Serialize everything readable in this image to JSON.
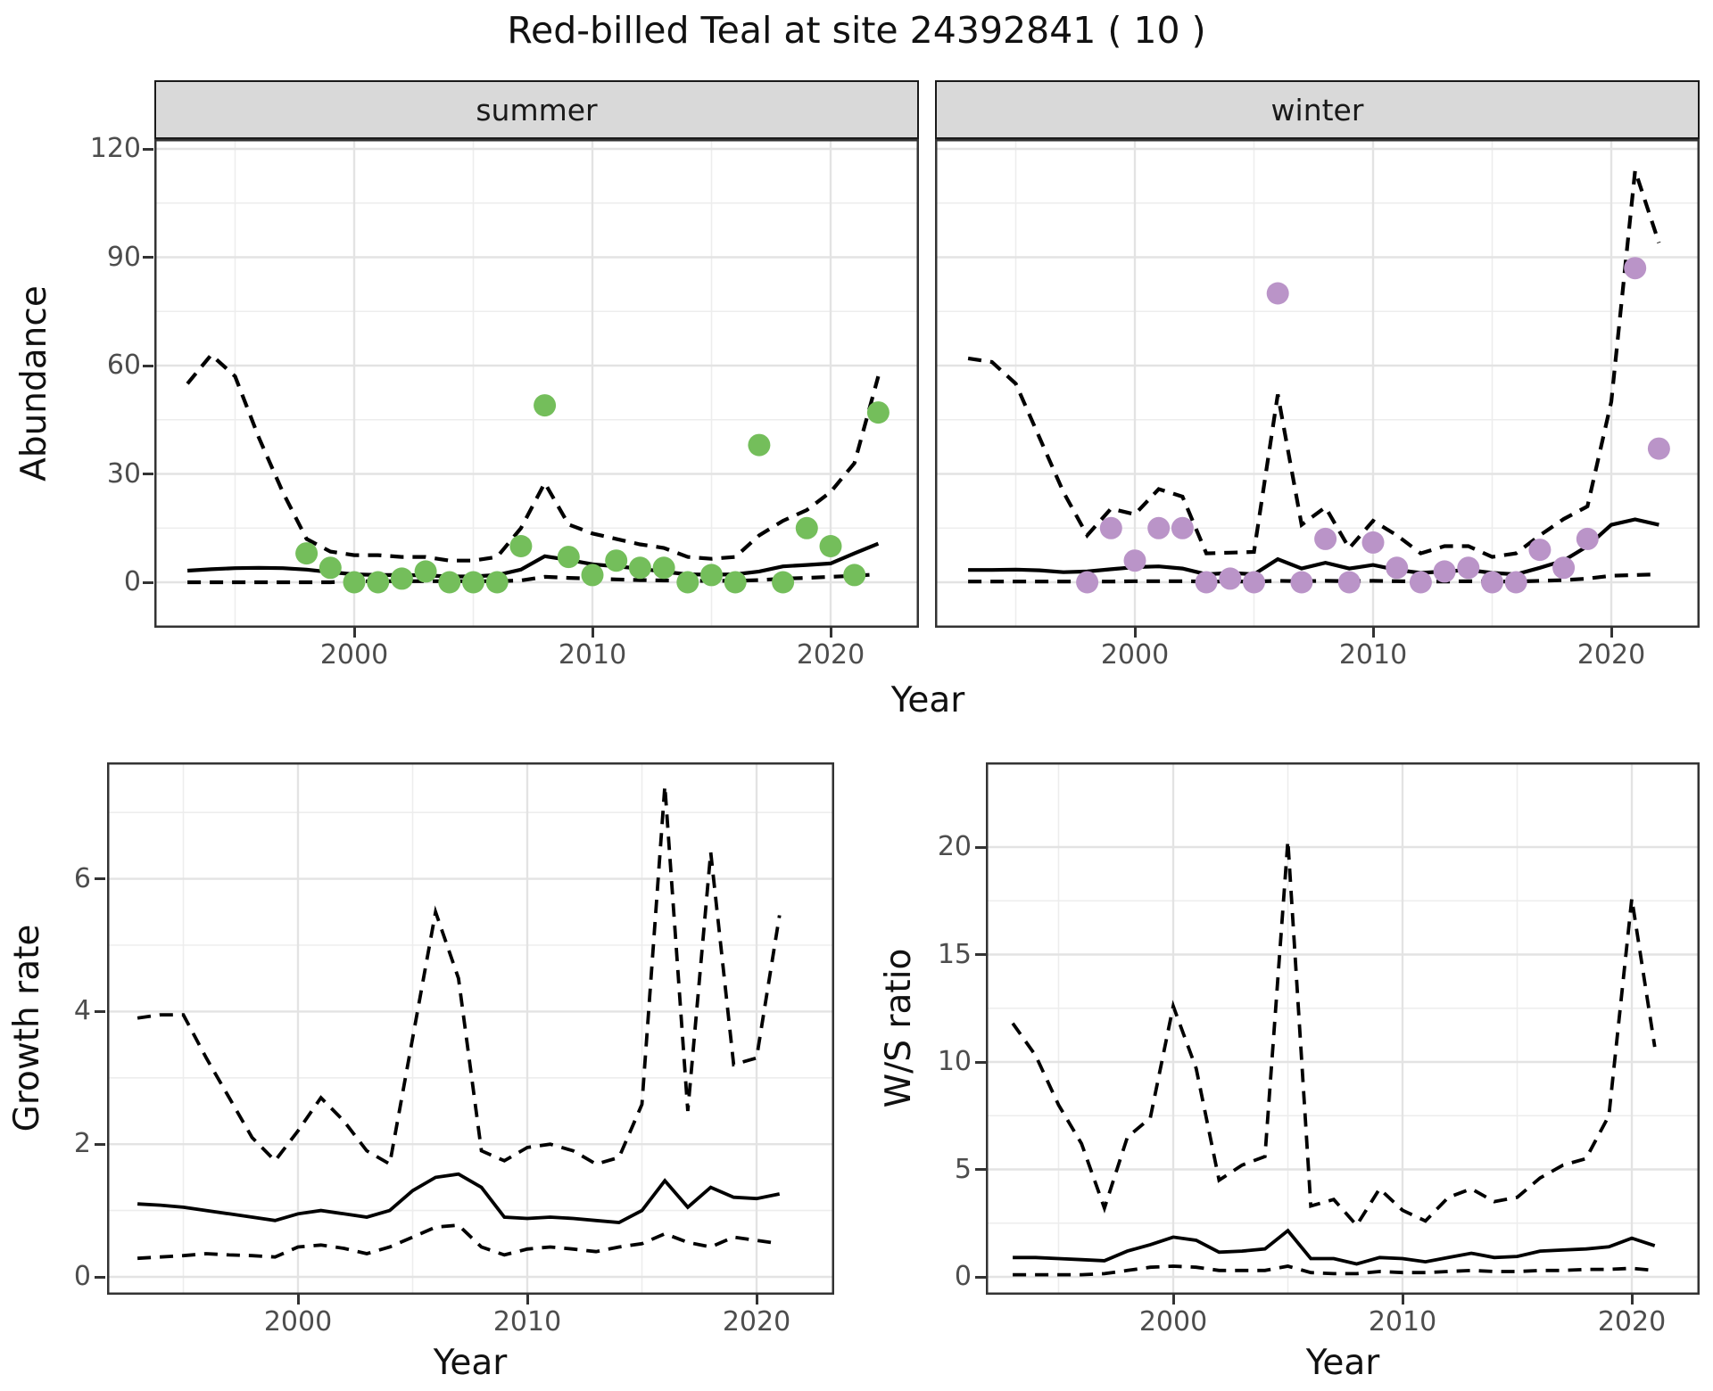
{
  "page_title": "Red-billed Teal at site 24392841 ( 10 )",
  "labels": {
    "abundance_ylabel": "Abundance",
    "year_xlabel": "Year",
    "growth_ylabel": "Growth rate",
    "ws_ylabel": "W/S ratio",
    "facet_summer": "summer",
    "facet_winter": "winter"
  },
  "colors": {
    "summer_point": "#74BE5B",
    "winter_point": "#BA94C8",
    "line": "#000000",
    "strip_bg": "#D9D9D9",
    "panel_border": "#333333",
    "grid_major": "#E3E3E3",
    "grid_minor": "#EDEDED",
    "tick_text": "#4D4D4D"
  },
  "chart_data": [
    {
      "id": "abundance-summer",
      "type": "scatter",
      "facet": "summer",
      "ylabel": "Abundance",
      "xlabel": "Year",
      "ylim": [
        0,
        120
      ],
      "yticks": [
        0,
        30,
        60,
        90,
        120
      ],
      "yticks_minor": [
        15,
        45,
        75,
        105
      ],
      "xticks": [
        2000,
        2010,
        2020
      ],
      "xticks_minor": [
        1995,
        2005,
        2015
      ],
      "point_color": "#74BE5B",
      "years": [
        1993,
        1994,
        1995,
        1996,
        1997,
        1998,
        1999,
        2000,
        2001,
        2002,
        2003,
        2004,
        2005,
        2006,
        2007,
        2008,
        2009,
        2010,
        2011,
        2012,
        2013,
        2014,
        2015,
        2016,
        2017,
        2018,
        2019,
        2020,
        2021,
        2022
      ],
      "fit": [
        3.2,
        3.6,
        3.9,
        4.0,
        3.9,
        3.5,
        2.8,
        2.2,
        2.0,
        2.0,
        1.9,
        1.6,
        1.6,
        2.0,
        3.5,
        7.2,
        6.2,
        5.0,
        4.4,
        3.8,
        2.9,
        2.2,
        2.1,
        2.2,
        3.0,
        4.4,
        4.8,
        5.2,
        8.0,
        10.7
      ],
      "ci_upper": [
        55,
        63,
        57,
        40,
        25,
        12,
        8.5,
        7.5,
        7.5,
        7,
        7,
        6,
        6,
        7,
        15,
        27.5,
        16,
        13.5,
        12,
        10.5,
        9.5,
        7,
        6.5,
        7,
        13,
        17,
        20,
        25,
        33,
        57
      ],
      "ci_lower": [
        0,
        0,
        0,
        0,
        0,
        0,
        0,
        0.3,
        0.3,
        0.3,
        0.3,
        0.3,
        0.3,
        0.3,
        0.5,
        1.5,
        1.2,
        1.0,
        0.8,
        0.6,
        0.5,
        0.4,
        0.4,
        0.4,
        0.6,
        1.0,
        1.2,
        1.5,
        1.8,
        2.2
      ],
      "obs_years": [
        1998,
        1999,
        2000,
        2001,
        2002,
        2003,
        2004,
        2005,
        2006,
        2007,
        2008,
        2009,
        2010,
        2011,
        2012,
        2013,
        2014,
        2015,
        2016,
        2017,
        2018,
        2019,
        2020,
        2021,
        2022
      ],
      "obs": [
        8,
        4,
        0,
        0,
        1,
        3,
        0,
        0,
        0,
        10,
        49,
        7,
        2,
        6,
        4,
        4,
        0,
        2,
        0,
        38,
        0,
        15,
        10,
        2,
        47
      ]
    },
    {
      "id": "abundance-winter",
      "type": "scatter",
      "facet": "winter",
      "ylabel": "Abundance",
      "xlabel": "Year",
      "ylim": [
        0,
        120
      ],
      "yticks": [
        0,
        30,
        60,
        90,
        120
      ],
      "yticks_minor": [
        15,
        45,
        75,
        105
      ],
      "xticks": [
        2000,
        2010,
        2020
      ],
      "xticks_minor": [
        1995,
        2005,
        2015
      ],
      "point_color": "#BA94C8",
      "years": [
        1993,
        1994,
        1995,
        1996,
        1997,
        1998,
        1999,
        2000,
        2001,
        2002,
        2003,
        2004,
        2005,
        2006,
        2007,
        2008,
        2009,
        2010,
        2011,
        2012,
        2013,
        2014,
        2015,
        2016,
        2017,
        2018,
        2019,
        2020,
        2021,
        2022
      ],
      "fit": [
        3.4,
        3.4,
        3.5,
        3.3,
        2.8,
        3.0,
        3.6,
        4.2,
        4.4,
        3.8,
        2.2,
        2.6,
        2.2,
        6.4,
        3.8,
        5.4,
        3.8,
        4.8,
        3.4,
        2.6,
        3.0,
        3.4,
        2.6,
        2.2,
        4.0,
        6.0,
        10.0,
        15.9,
        17.4,
        15.9
      ],
      "ci_upper": [
        62,
        61,
        55,
        40,
        25,
        13,
        20.4,
        18.8,
        25.8,
        23.7,
        8,
        8.2,
        8.4,
        52,
        15.9,
        20.8,
        9.4,
        17,
        13,
        8,
        10,
        10,
        7,
        8,
        13,
        17.5,
        21,
        50,
        114,
        94
      ],
      "ci_lower": [
        0.2,
        0.2,
        0.2,
        0.2,
        0.2,
        0.2,
        0.2,
        0.3,
        0.3,
        0.3,
        0.2,
        0.2,
        0.2,
        0.4,
        0.3,
        0.4,
        0.3,
        0.4,
        0.3,
        0.2,
        0.2,
        0.3,
        0.2,
        0.2,
        0.4,
        0.6,
        1.0,
        1.8,
        2.0,
        2.2
      ],
      "obs_years": [
        1998,
        1999,
        2000,
        2001,
        2002,
        2003,
        2004,
        2005,
        2006,
        2007,
        2008,
        2009,
        2010,
        2011,
        2012,
        2013,
        2014,
        2015,
        2016,
        2017,
        2018,
        2019,
        2021,
        2022
      ],
      "obs": [
        0,
        15,
        6,
        15,
        15,
        0,
        1,
        0,
        80,
        0,
        12,
        0,
        11,
        4,
        0,
        3,
        4,
        0,
        0,
        9,
        4,
        12,
        87,
        37
      ]
    },
    {
      "id": "growth-rate",
      "type": "line",
      "ylabel": "Growth rate",
      "xlabel": "Year",
      "ylim": [
        0,
        7.5
      ],
      "yticks": [
        0,
        2,
        4,
        6
      ],
      "yticks_minor": [
        1,
        3,
        5,
        7
      ],
      "xticks": [
        2000,
        2010,
        2020
      ],
      "xticks_minor": [
        1995,
        2005,
        2015
      ],
      "years": [
        1993,
        1994,
        1995,
        1996,
        1997,
        1998,
        1999,
        2000,
        2001,
        2002,
        2003,
        2004,
        2005,
        2006,
        2007,
        2008,
        2009,
        2010,
        2011,
        2012,
        2013,
        2014,
        2015,
        2016,
        2017,
        2018,
        2019,
        2020,
        2021
      ],
      "median": [
        1.1,
        1.08,
        1.05,
        1.0,
        0.95,
        0.9,
        0.85,
        0.95,
        1.0,
        0.95,
        0.9,
        1.0,
        1.3,
        1.5,
        1.55,
        1.35,
        0.9,
        0.88,
        0.9,
        0.88,
        0.85,
        0.82,
        1.0,
        1.45,
        1.05,
        1.35,
        1.2,
        1.18,
        1.25
      ],
      "ci_upper": [
        3.9,
        3.95,
        3.95,
        3.3,
        2.7,
        2.1,
        1.75,
        2.2,
        2.7,
        2.35,
        1.9,
        1.7,
        3.6,
        5.5,
        4.5,
        1.9,
        1.75,
        1.95,
        2.0,
        1.9,
        1.7,
        1.8,
        2.6,
        7.4,
        2.5,
        6.4,
        3.2,
        3.3,
        5.45
      ],
      "ci_lower": [
        0.28,
        0.3,
        0.32,
        0.35,
        0.33,
        0.32,
        0.3,
        0.45,
        0.48,
        0.43,
        0.35,
        0.45,
        0.6,
        0.75,
        0.78,
        0.45,
        0.33,
        0.42,
        0.45,
        0.42,
        0.38,
        0.45,
        0.5,
        0.65,
        0.52,
        0.45,
        0.6,
        0.55,
        0.5
      ]
    },
    {
      "id": "ws-ratio",
      "type": "line",
      "ylabel": "W/S ratio",
      "xlabel": "Year",
      "ylim": [
        0,
        21
      ],
      "yticks": [
        0,
        5,
        10,
        15,
        20
      ],
      "yticks_minor": [
        2.5,
        7.5,
        12.5,
        17.5
      ],
      "xticks": [
        2000,
        2010,
        2020
      ],
      "xticks_minor": [
        1995,
        2005,
        2015
      ],
      "years": [
        1993,
        1994,
        1995,
        1996,
        1997,
        1998,
        1999,
        2000,
        2001,
        2002,
        2003,
        2004,
        2005,
        2006,
        2007,
        2008,
        2009,
        2010,
        2011,
        2012,
        2013,
        2014,
        2015,
        2016,
        2017,
        2018,
        2019,
        2020,
        2021
      ],
      "median": [
        0.9,
        0.9,
        0.85,
        0.8,
        0.75,
        1.2,
        1.5,
        1.85,
        1.7,
        1.15,
        1.2,
        1.3,
        2.15,
        0.85,
        0.85,
        0.6,
        0.9,
        0.85,
        0.7,
        0.9,
        1.1,
        0.9,
        0.95,
        1.2,
        1.25,
        1.3,
        1.4,
        1.8,
        1.45
      ],
      "ci_upper": [
        11.8,
        10.3,
        8.0,
        6.2,
        3.2,
        6.5,
        7.4,
        12.6,
        9.7,
        4.5,
        5.2,
        5.6,
        20.3,
        3.3,
        3.6,
        2.4,
        4.1,
        3.1,
        2.6,
        3.7,
        4.1,
        3.5,
        3.7,
        4.6,
        5.2,
        5.5,
        7.5,
        17.6,
        10.7
      ],
      "ci_lower": [
        0.1,
        0.1,
        0.1,
        0.1,
        0.15,
        0.3,
        0.45,
        0.5,
        0.45,
        0.3,
        0.3,
        0.3,
        0.5,
        0.2,
        0.15,
        0.15,
        0.25,
        0.2,
        0.2,
        0.25,
        0.3,
        0.25,
        0.25,
        0.3,
        0.3,
        0.35,
        0.35,
        0.4,
        0.3
      ]
    }
  ]
}
